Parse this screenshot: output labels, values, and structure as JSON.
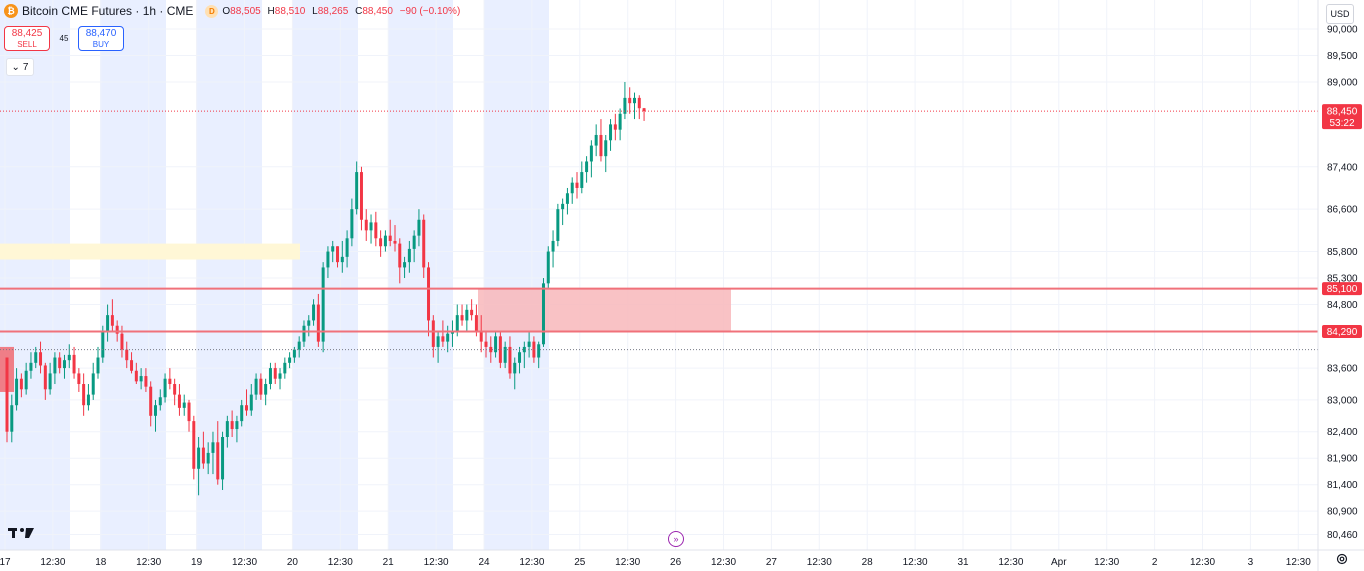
{
  "header": {
    "coin_glyph": "₿",
    "title": "Bitcoin CME Futures · 1h · CME",
    "badge": "D",
    "ohlc": {
      "o_key": "O",
      "o": "88,505",
      "h_key": "H",
      "h": "88,510",
      "l_key": "L",
      "l": "88,265",
      "c_key": "C",
      "c": "88,450",
      "change": "−90 (−0.10%)"
    }
  },
  "trade": {
    "sell_price": "88,425",
    "sell_label": "SELL",
    "spread": "45",
    "buy_price": "88,470",
    "buy_label": "BUY"
  },
  "indicators_toggle": {
    "glyph": "⌄",
    "count": "7"
  },
  "currency": "USD",
  "colors": {
    "up": "#089981",
    "down": "#f23645",
    "session": "#e9efff",
    "zone_fill": "#f8b7bb",
    "zone_line": "#f0717a",
    "yellow_zone": "#fff7d6",
    "jump": "#9c27b0"
  },
  "chart_data": {
    "type": "candlestick",
    "symbol": "Bitcoin CME Futures",
    "interval": "1h",
    "y_axis": {
      "ticks": [
        90000,
        89500,
        89000,
        87400,
        86600,
        85800,
        85300,
        84800,
        83600,
        83000,
        82400,
        81900,
        81400,
        80900,
        80460
      ],
      "tick_labels": [
        "90,000",
        "89,500",
        "89,000",
        "87,400",
        "86,600",
        "85,800",
        "85,300",
        "84,800",
        "83,600",
        "83,000",
        "82,400",
        "81,900",
        "81,400",
        "80,900",
        "80,460"
      ]
    },
    "x_axis": {
      "labels": [
        "17",
        "12:30",
        "18",
        "12:30",
        "19",
        "12:30",
        "20",
        "12:30",
        "21",
        "12:30",
        "24",
        "12:30",
        "25",
        "12:30",
        "26",
        "12:30",
        "27",
        "12:30",
        "28",
        "12:30",
        "31",
        "12:30",
        "Apr",
        "12:30",
        "2",
        "12:30",
        "3",
        "12:30"
      ]
    },
    "last_price": {
      "label": "88,450",
      "value": 88450,
      "countdown": "53:22"
    },
    "price_lines": [
      {
        "label": "85,100",
        "value": 85100
      },
      {
        "label": "84,290",
        "value": 84290
      }
    ],
    "zones": [
      {
        "name": "demand-zone",
        "from": 84290,
        "to": 85100
      },
      {
        "name": "highlight-zone",
        "from": 85650,
        "to": 85950
      }
    ],
    "dotted_level": 83950,
    "candles": [
      [
        83800,
        83800,
        82200,
        82400
      ],
      [
        82400,
        83100,
        82200,
        82900
      ],
      [
        82900,
        83600,
        82800,
        83400
      ],
      [
        83400,
        83500,
        83050,
        83200
      ],
      [
        83200,
        83700,
        83100,
        83550
      ],
      [
        83550,
        83900,
        83400,
        83700
      ],
      [
        83700,
        84000,
        83600,
        83900
      ],
      [
        83900,
        84100,
        83500,
        83650
      ],
      [
        83650,
        83700,
        83000,
        83200
      ],
      [
        83200,
        83700,
        83100,
        83500
      ],
      [
        83500,
        83900,
        83300,
        83800
      ],
      [
        83800,
        83900,
        83500,
        83600
      ],
      [
        83600,
        83850,
        83400,
        83750
      ],
      [
        83750,
        84050,
        83600,
        83850
      ],
      [
        83850,
        84000,
        83400,
        83500
      ],
      [
        83500,
        83600,
        83150,
        83300
      ],
      [
        83300,
        83500,
        82700,
        82900
      ],
      [
        82900,
        83300,
        82800,
        83100
      ],
      [
        83100,
        83700,
        83000,
        83500
      ],
      [
        83500,
        84000,
        83400,
        83800
      ],
      [
        83800,
        84400,
        83700,
        84300
      ],
      [
        84300,
        84800,
        84100,
        84600
      ],
      [
        84600,
        84900,
        84300,
        84400
      ],
      [
        84400,
        84500,
        84100,
        84250
      ],
      [
        84250,
        84400,
        83800,
        83950
      ],
      [
        83950,
        84100,
        83600,
        83750
      ],
      [
        83750,
        83900,
        83500,
        83550
      ],
      [
        83550,
        83700,
        83300,
        83350
      ],
      [
        83350,
        83600,
        83200,
        83450
      ],
      [
        83450,
        83600,
        83150,
        83250
      ],
      [
        83250,
        83350,
        82500,
        82700
      ],
      [
        82700,
        83000,
        82400,
        82900
      ],
      [
        82900,
        83200,
        82800,
        83050
      ],
      [
        83050,
        83500,
        82950,
        83400
      ],
      [
        83400,
        83600,
        83200,
        83300
      ],
      [
        83300,
        83400,
        82900,
        83100
      ],
      [
        83100,
        83300,
        82700,
        82850
      ],
      [
        82850,
        83100,
        82700,
        82950
      ],
      [
        82950,
        83000,
        82400,
        82600
      ],
      [
        82600,
        82700,
        81500,
        81700
      ],
      [
        81700,
        82300,
        81200,
        82100
      ],
      [
        82100,
        82400,
        81700,
        81800
      ],
      [
        81800,
        82200,
        81600,
        82000
      ],
      [
        82000,
        82400,
        81600,
        82200
      ],
      [
        82200,
        82600,
        81400,
        81500
      ],
      [
        81500,
        82400,
        81300,
        82300
      ],
      [
        82300,
        82700,
        82100,
        82600
      ],
      [
        82600,
        82800,
        82300,
        82450
      ],
      [
        82450,
        82700,
        82200,
        82600
      ],
      [
        82600,
        83000,
        82500,
        82900
      ],
      [
        82900,
        83200,
        82700,
        82800
      ],
      [
        82800,
        83300,
        82700,
        83100
      ],
      [
        83100,
        83500,
        83000,
        83400
      ],
      [
        83400,
        83500,
        83000,
        83100
      ],
      [
        83100,
        83400,
        82900,
        83300
      ],
      [
        83300,
        83700,
        83200,
        83600
      ],
      [
        83600,
        83700,
        83300,
        83400
      ],
      [
        83400,
        83600,
        83200,
        83500
      ],
      [
        83500,
        83800,
        83400,
        83700
      ],
      [
        83700,
        83900,
        83600,
        83800
      ],
      [
        83800,
        84000,
        83700,
        83950
      ],
      [
        83950,
        84200,
        83800,
        84100
      ],
      [
        84100,
        84500,
        84000,
        84400
      ],
      [
        84400,
        84600,
        84200,
        84500
      ],
      [
        84500,
        84900,
        84400,
        84800
      ],
      [
        84800,
        85000,
        84000,
        84100
      ],
      [
        84100,
        85600,
        83900,
        85500
      ],
      [
        85500,
        85900,
        85300,
        85800
      ],
      [
        85800,
        86000,
        85600,
        85900
      ],
      [
        85900,
        85900,
        85500,
        85600
      ],
      [
        85600,
        86000,
        85400,
        85700
      ],
      [
        85700,
        86200,
        85500,
        86050
      ],
      [
        86050,
        86800,
        85900,
        86600
      ],
      [
        86600,
        87500,
        86500,
        87300
      ],
      [
        87300,
        87400,
        86200,
        86400
      ],
      [
        86400,
        86600,
        86000,
        86200
      ],
      [
        86200,
        86500,
        85950,
        86350
      ],
      [
        86350,
        86550,
        85900,
        86050
      ],
      [
        86050,
        86200,
        85700,
        85900
      ],
      [
        85900,
        86200,
        85800,
        86100
      ],
      [
        86100,
        86400,
        85900,
        86000
      ],
      [
        86000,
        86300,
        85800,
        85950
      ],
      [
        85950,
        86050,
        85200,
        85500
      ],
      [
        85500,
        85700,
        85300,
        85600
      ],
      [
        85600,
        86000,
        85400,
        85850
      ],
      [
        85850,
        86200,
        85600,
        86100
      ],
      [
        86100,
        86600,
        85900,
        86400
      ],
      [
        86400,
        86500,
        85300,
        85500
      ],
      [
        85500,
        85600,
        84200,
        84500
      ],
      [
        84500,
        84600,
        83800,
        84000
      ],
      [
        84000,
        84300,
        83700,
        84200
      ],
      [
        84200,
        84500,
        84000,
        84100
      ],
      [
        84100,
        84400,
        83900,
        84250
      ],
      [
        84250,
        84500,
        84000,
        84300
      ],
      [
        84300,
        84800,
        84200,
        84600
      ],
      [
        84600,
        84800,
        84400,
        84500
      ],
      [
        84500,
        84800,
        84300,
        84700
      ],
      [
        84700,
        84900,
        84500,
        84600
      ],
      [
        84600,
        84800,
        84200,
        84300
      ],
      [
        84300,
        84600,
        83900,
        84100
      ],
      [
        84100,
        84300,
        83800,
        84000
      ],
      [
        84000,
        84200,
        83700,
        83900
      ],
      [
        83900,
        84300,
        83800,
        84200
      ],
      [
        84200,
        84300,
        83600,
        83700
      ],
      [
        83700,
        84100,
        83600,
        84000
      ],
      [
        84000,
        84200,
        83400,
        83500
      ],
      [
        83500,
        83800,
        83200,
        83700
      ],
      [
        83700,
        84000,
        83500,
        83900
      ],
      [
        83900,
        84100,
        83600,
        84000
      ],
      [
        84000,
        84300,
        83800,
        84100
      ],
      [
        84100,
        84200,
        83700,
        83800
      ],
      [
        83800,
        84100,
        83600,
        84050
      ],
      [
        84050,
        85300,
        84000,
        85200
      ],
      [
        85200,
        85900,
        85100,
        85800
      ],
      [
        85800,
        86200,
        85500,
        86000
      ],
      [
        86000,
        86700,
        85900,
        86600
      ],
      [
        86600,
        86800,
        86300,
        86700
      ],
      [
        86700,
        87000,
        86500,
        86900
      ],
      [
        86900,
        87200,
        86700,
        87100
      ],
      [
        87100,
        87300,
        86800,
        87000
      ],
      [
        87000,
        87500,
        86900,
        87300
      ],
      [
        87300,
        87600,
        87100,
        87500
      ],
      [
        87500,
        87900,
        87200,
        87800
      ],
      [
        87800,
        88200,
        87600,
        88000
      ],
      [
        88000,
        88300,
        87500,
        87600
      ],
      [
        87600,
        88000,
        87300,
        87900
      ],
      [
        87900,
        88300,
        87700,
        88200
      ],
      [
        88200,
        88400,
        87900,
        88100
      ],
      [
        88100,
        88500,
        87900,
        88400
      ],
      [
        88400,
        89000,
        88300,
        88700
      ],
      [
        88700,
        88900,
        88400,
        88600
      ],
      [
        88600,
        88800,
        88300,
        88700
      ],
      [
        88700,
        88750,
        88300,
        88505
      ],
      [
        88505,
        88510,
        88265,
        88450
      ]
    ]
  }
}
